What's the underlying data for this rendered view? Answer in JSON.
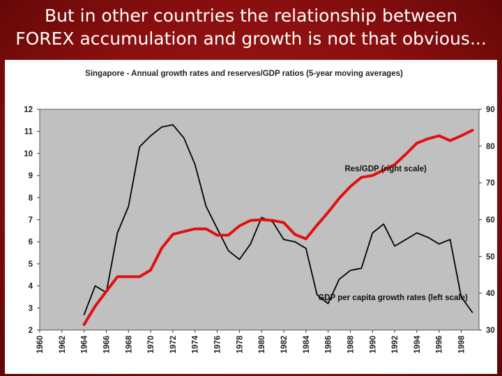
{
  "slide": {
    "title_line1": "But in other countries the relationship between",
    "title_line2": "FOREX accumulation and growth is not that obvious..."
  },
  "colors": {
    "background": "#8a0f0f",
    "plot_area": "#c0c0c0",
    "reserves_line": "#e01010",
    "growth_line": "#000000"
  },
  "chart_data": {
    "type": "line",
    "title": "Singapore  - Annual growth rates and reserves/GDP ratios (5-year moving averages)",
    "x_ticks": [
      "1960",
      "1962",
      "1964",
      "1966",
      "1968",
      "1970",
      "1972",
      "1974",
      "1976",
      "1978",
      "1980",
      "1982",
      "1984",
      "1986",
      "1988",
      "1990",
      "1992",
      "1994",
      "1996",
      "1998"
    ],
    "xlim": [
      1960,
      1999.6
    ],
    "left_axis": {
      "ylim": [
        2,
        12
      ],
      "ticks": [
        "2",
        "3",
        "4",
        "5",
        "6",
        "7",
        "8",
        "9",
        "10",
        "11",
        "12"
      ]
    },
    "right_axis": {
      "ylim": [
        30,
        90
      ],
      "ticks": [
        "30",
        "40",
        "50",
        "60",
        "70",
        "80",
        "90"
      ]
    },
    "grid": false,
    "series": [
      {
        "name": "GDP per capita growth rates (left scale)",
        "axis": "left",
        "x": [
          1964,
          1965,
          1966,
          1967,
          1968,
          1969,
          1970,
          1971,
          1972,
          1973,
          1974,
          1975,
          1976,
          1977,
          1978,
          1979,
          1980,
          1981,
          1982,
          1983,
          1984,
          1985,
          1986,
          1987,
          1988,
          1989,
          1990,
          1991,
          1992,
          1993,
          1994,
          1995,
          1996,
          1997,
          1998,
          1999
        ],
        "values": [
          2.7,
          4.0,
          3.7,
          6.4,
          7.6,
          10.3,
          10.8,
          11.2,
          11.3,
          10.7,
          9.5,
          7.6,
          6.6,
          5.6,
          5.2,
          5.9,
          7.1,
          6.9,
          6.1,
          6.0,
          5.7,
          3.6,
          3.2,
          4.3,
          4.7,
          4.8,
          6.4,
          6.8,
          5.8,
          6.1,
          6.4,
          6.2,
          5.9,
          6.1,
          3.5,
          2.8
        ]
      },
      {
        "name": "Res/GDP (right scale)",
        "axis": "right",
        "x": [
          1964,
          1965,
          1966,
          1967,
          1968,
          1969,
          1970,
          1971,
          1972,
          1973,
          1974,
          1975,
          1976,
          1977,
          1978,
          1979,
          1980,
          1981,
          1982,
          1983,
          1984,
          1985,
          1986,
          1987,
          1988,
          1989,
          1990,
          1991,
          1992,
          1993,
          1994,
          1995,
          1996,
          1997,
          1998,
          1999
        ],
        "values": [
          31.5,
          36.5,
          40.5,
          44.5,
          44.5,
          44.5,
          46.3,
          52.3,
          56.0,
          56.8,
          57.5,
          57.5,
          55.8,
          55.8,
          58.3,
          59.8,
          60.0,
          59.8,
          59.2,
          56.0,
          54.8,
          58.5,
          62.0,
          65.8,
          69.0,
          71.5,
          72.0,
          73.5,
          75.0,
          77.8,
          80.8,
          82.0,
          82.8,
          81.5,
          82.8,
          84.3
        ]
      }
    ],
    "annotations": [
      {
        "text": "Res/GDP (right scale)",
        "x": 1987.5,
        "y_left": 9.2
      },
      {
        "text": "GDP per capita growth rates (left scale)",
        "x": 1985.1,
        "y_left": 3.35
      }
    ]
  }
}
